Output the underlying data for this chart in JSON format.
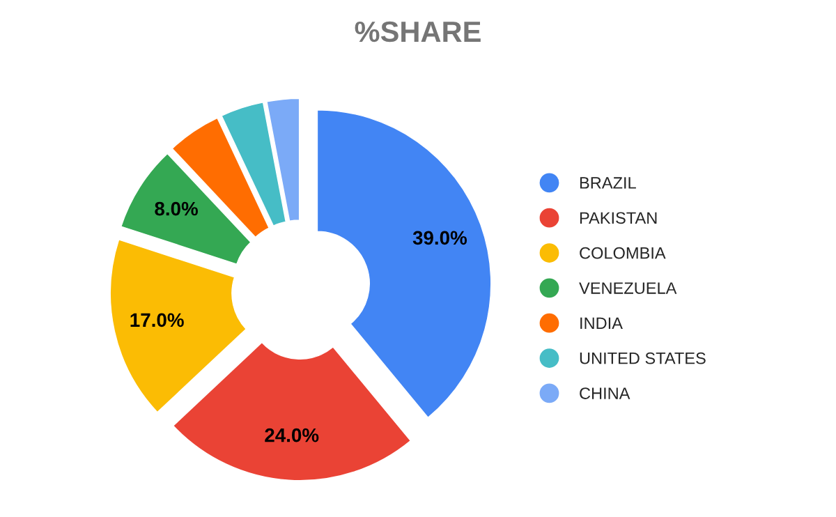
{
  "chart_data": {
    "type": "donut",
    "title": "%SHARE",
    "categories": [
      "BRAZIL",
      "PAKISTAN",
      "COLOMBIA",
      "VENEZUELA",
      "INDIA",
      "UNITED STATES",
      "CHINA"
    ],
    "values": [
      39,
      24,
      17,
      8,
      5,
      4,
      3
    ],
    "colors": [
      "#4285f4",
      "#ea4335",
      "#fbbc04",
      "#34a853",
      "#ff6d01",
      "#46bdc6",
      "#7baaf7"
    ],
    "value_labels": [
      "39.0%",
      "24.0%",
      "17.0%",
      "8.0%",
      null,
      null,
      null
    ],
    "legend": "right"
  }
}
